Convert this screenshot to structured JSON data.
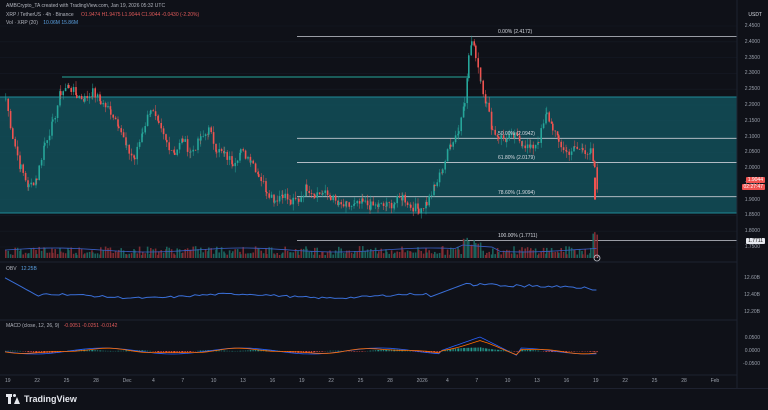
{
  "header": {
    "credit": "AMBCrypto_TA created with TradingView.com, Jan 19, 2026 05:32 UTC",
    "symbol_line": "XRP / TetherUS · 4h · Binance",
    "ohlc": "O1.9474  H1.9475  L1.9044  C1.9044  -0.0430 (-2.20%)",
    "vol_line": "Vol · XRP (20)",
    "vol_values": "10.06M  15.86M"
  },
  "price_axis": {
    "quote": "USDT",
    "ticks": [
      "2.4500",
      "2.4000",
      "2.3500",
      "2.3000",
      "2.2500",
      "2.2000",
      "2.1500",
      "2.1000",
      "2.0500",
      "2.0000",
      "1.9500",
      "1.9000",
      "1.8500",
      "1.8000",
      "1.7500"
    ],
    "current_price": "1.9044",
    "current_time": "02:27:47",
    "fib_price_tag": "1.7711"
  },
  "fib_levels": [
    {
      "label": "0.00% (2.4172)",
      "price": 2.4172
    },
    {
      "label": "50.00% (2.0942)",
      "price": 2.0942
    },
    {
      "label": "61.80% (2.0179)",
      "price": 2.0179
    },
    {
      "label": "78.60% (1.9094)",
      "price": 1.9094
    },
    {
      "label": "100.00% (1.7711)",
      "price": 1.7711
    }
  ],
  "obv": {
    "label": "OBV",
    "value": "12.25B",
    "ticks": [
      "12.60B",
      "12.40B",
      "12.20B"
    ]
  },
  "macd": {
    "label": "MACD (close, 12, 26, 9)",
    "values": "-0.0051  -0.0251  -0.0142",
    "ticks": [
      "0.0500",
      "0.0000",
      "-0.0500"
    ]
  },
  "time_axis": [
    "19",
    "22",
    "25",
    "28",
    "Dec",
    "4",
    "7",
    "10",
    "13",
    "16",
    "19",
    "22",
    "25",
    "28",
    "2026",
    "4",
    "7",
    "10",
    "13",
    "16",
    "19",
    "22",
    "25",
    "28",
    "Feb"
  ],
  "footer": {
    "brand": "TradingView"
  },
  "colors": {
    "background": "#0f1118",
    "zone": "#12525e",
    "up": "#26a69a",
    "down": "#ef5350",
    "obv": "#3a6fd8",
    "fib": "#c8ccd4"
  }
}
